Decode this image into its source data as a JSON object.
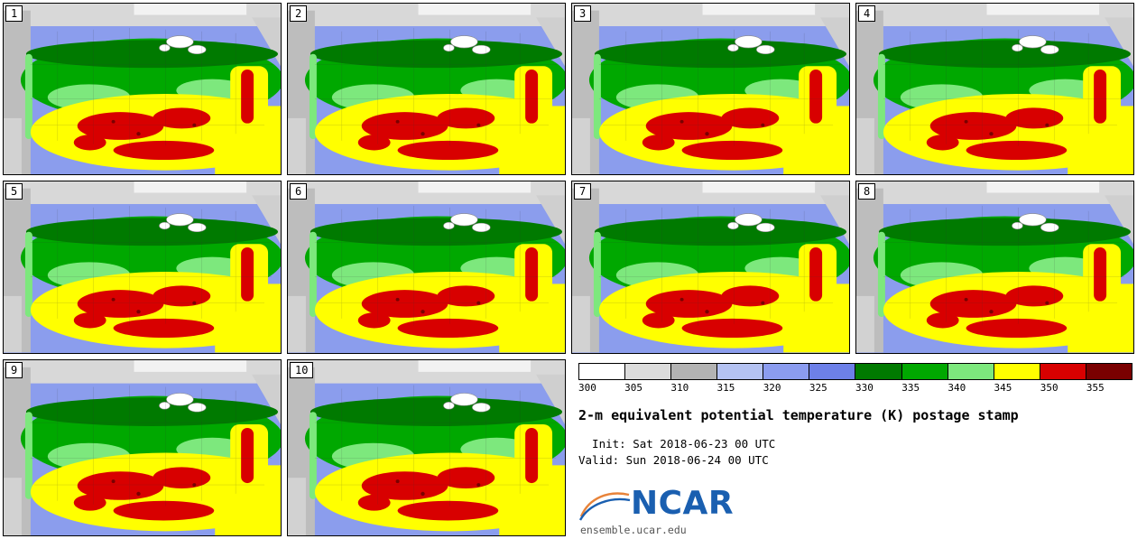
{
  "panels": [
    {
      "label": "1"
    },
    {
      "label": "2"
    },
    {
      "label": "3"
    },
    {
      "label": "4"
    },
    {
      "label": "5"
    },
    {
      "label": "6"
    },
    {
      "label": "7"
    },
    {
      "label": "8"
    },
    {
      "label": "9"
    },
    {
      "label": "10"
    }
  ],
  "legend": {
    "ticks": [
      "300",
      "305",
      "310",
      "315",
      "320",
      "325",
      "330",
      "335",
      "340",
      "345",
      "350",
      "355"
    ],
    "colors": [
      "#ffffff",
      "#dcdcdc",
      "#b3b3b3",
      "#b4c2f2",
      "#8b9cf0",
      "#6d80e8",
      "#007a00",
      "#00a800",
      "#7de87d",
      "#ffff00",
      "#d80000",
      "#7a0000"
    ]
  },
  "title": "2-m equivalent potential temperature (K) postage stamp",
  "init_line": "  Init: Sat 2018-06-23 00 UTC",
  "valid_line": "Valid: Sun 2018-06-24 00 UTC",
  "logo": {
    "text": "NCAR",
    "url": "ensemble.ucar.edu",
    "color": "#1a5fb0"
  },
  "chart_data": {
    "type": "heatmap",
    "subtype": "ensemble-postage-stamp-maps",
    "title": "2-m equivalent potential temperature (K) postage stamp",
    "panel_labels": [
      "1",
      "2",
      "3",
      "4",
      "5",
      "6",
      "7",
      "8",
      "9",
      "10"
    ],
    "variable": "2-m equivalent potential temperature",
    "unit": "K",
    "init": "Sat 2018-06-23 00 UTC",
    "valid": "Sun 2018-06-24 00 UTC",
    "colorbar": {
      "tick_values": [
        300,
        305,
        310,
        315,
        320,
        325,
        330,
        335,
        340,
        345,
        350,
        355
      ],
      "segment_colors": [
        "#ffffff",
        "#dcdcdc",
        "#b3b3b3",
        "#b4c2f2",
        "#8b9cf0",
        "#6d80e8",
        "#007a00",
        "#00a800",
        "#7de87d",
        "#ffff00",
        "#d80000",
        "#7a0000"
      ],
      "orientation": "horizontal"
    },
    "source_url": "ensemble.ucar.edu"
  }
}
